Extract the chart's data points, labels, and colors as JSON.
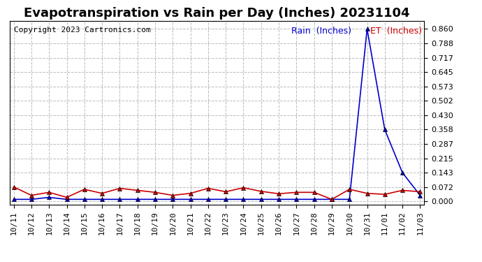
{
  "title": "Evapotranspiration vs Rain per Day (Inches) 20231104",
  "copyright": "Copyright 2023 Cartronics.com",
  "legend_rain": "Rain  (Inches)",
  "legend_et": "ET  (Inches)",
  "labels": [
    "10/11",
    "10/12",
    "10/13",
    "10/14",
    "10/15",
    "10/16",
    "10/17",
    "10/18",
    "10/19",
    "10/20",
    "10/21",
    "10/22",
    "10/23",
    "10/24",
    "10/25",
    "10/26",
    "10/27",
    "10/28",
    "10/29",
    "10/30",
    "10/31",
    "11/01",
    "11/02",
    "11/03"
  ],
  "rain": [
    0.01,
    0.01,
    0.02,
    0.01,
    0.01,
    0.01,
    0.01,
    0.01,
    0.01,
    0.01,
    0.01,
    0.01,
    0.01,
    0.01,
    0.01,
    0.01,
    0.01,
    0.01,
    0.01,
    0.01,
    0.86,
    0.358,
    0.143,
    0.03
  ],
  "et": [
    0.072,
    0.03,
    0.045,
    0.02,
    0.06,
    0.04,
    0.065,
    0.055,
    0.045,
    0.03,
    0.04,
    0.065,
    0.048,
    0.068,
    0.05,
    0.038,
    0.045,
    0.045,
    0.01,
    0.06,
    0.04,
    0.035,
    0.055,
    0.048
  ],
  "rain_color": "#0000CC",
  "et_color": "#CC0000",
  "background_color": "#ffffff",
  "grid_color": "#bbbbbb",
  "yticks": [
    0.0,
    0.072,
    0.143,
    0.215,
    0.287,
    0.358,
    0.43,
    0.502,
    0.573,
    0.645,
    0.717,
    0.788,
    0.86
  ],
  "ylim": [
    -0.015,
    0.9
  ],
  "title_fontsize": 13,
  "copyright_fontsize": 8,
  "legend_fontsize": 9,
  "tick_fontsize": 8,
  "marker": "^",
  "markersize": 4,
  "linewidth": 1.2
}
